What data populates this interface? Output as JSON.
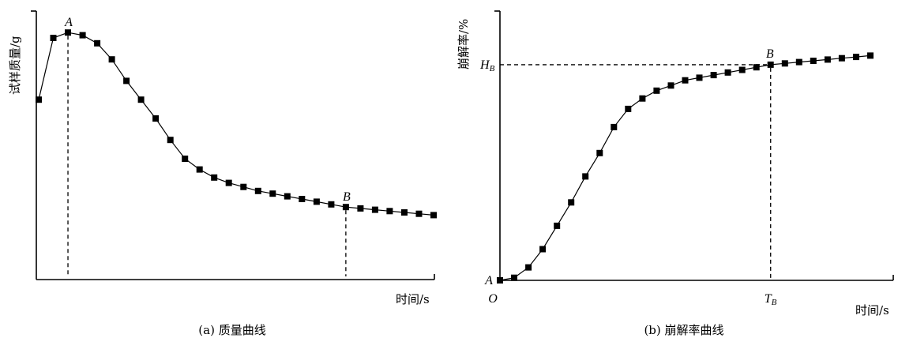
{
  "chart_data": [
    {
      "type": "line",
      "caption": "(a)  质量曲线",
      "ylabel": "试样质量/g",
      "xlabel": "时间/s",
      "grid": false,
      "annotations": [
        {
          "label": "A",
          "index": 2
        },
        {
          "label": "B",
          "index": 21
        }
      ],
      "series": [
        {
          "x": [
            0,
            1,
            2,
            3,
            4,
            5,
            6,
            7,
            8,
            9,
            10,
            11,
            12,
            13,
            14,
            15,
            16,
            17,
            18,
            19,
            20,
            21,
            22,
            23,
            24,
            25,
            26,
            27
          ],
          "values": [
            0.67,
            0.9,
            0.92,
            0.91,
            0.88,
            0.82,
            0.74,
            0.67,
            0.6,
            0.52,
            0.45,
            0.41,
            0.38,
            0.36,
            0.345,
            0.33,
            0.32,
            0.31,
            0.3,
            0.29,
            0.28,
            0.27,
            0.265,
            0.26,
            0.255,
            0.25,
            0.245,
            0.24
          ]
        }
      ]
    },
    {
      "type": "line",
      "caption": "(b)  崩解率曲线",
      "ylabel": "崩解率/%",
      "xlabel": "时间/s",
      "origin_label": "O",
      "grid": false,
      "annotations": [
        {
          "label": "A",
          "index": 0
        },
        {
          "label": "B",
          "index": 19
        }
      ],
      "reference": {
        "h_label": "H",
        "h_sub": "B",
        "t_label": "T",
        "t_sub": "B"
      },
      "series": [
        {
          "x": [
            0,
            1,
            2,
            3,
            4,
            5,
            6,
            7,
            8,
            9,
            10,
            11,
            12,
            13,
            14,
            15,
            16,
            17,
            18,
            19,
            20,
            21,
            22,
            23,
            24,
            25,
            26
          ],
          "values": [
            0,
            0.01,
            0.05,
            0.12,
            0.21,
            0.3,
            0.4,
            0.49,
            0.59,
            0.66,
            0.7,
            0.73,
            0.75,
            0.77,
            0.78,
            0.79,
            0.8,
            0.81,
            0.82,
            0.83,
            0.835,
            0.84,
            0.845,
            0.85,
            0.855,
            0.86,
            0.865
          ]
        }
      ]
    }
  ]
}
